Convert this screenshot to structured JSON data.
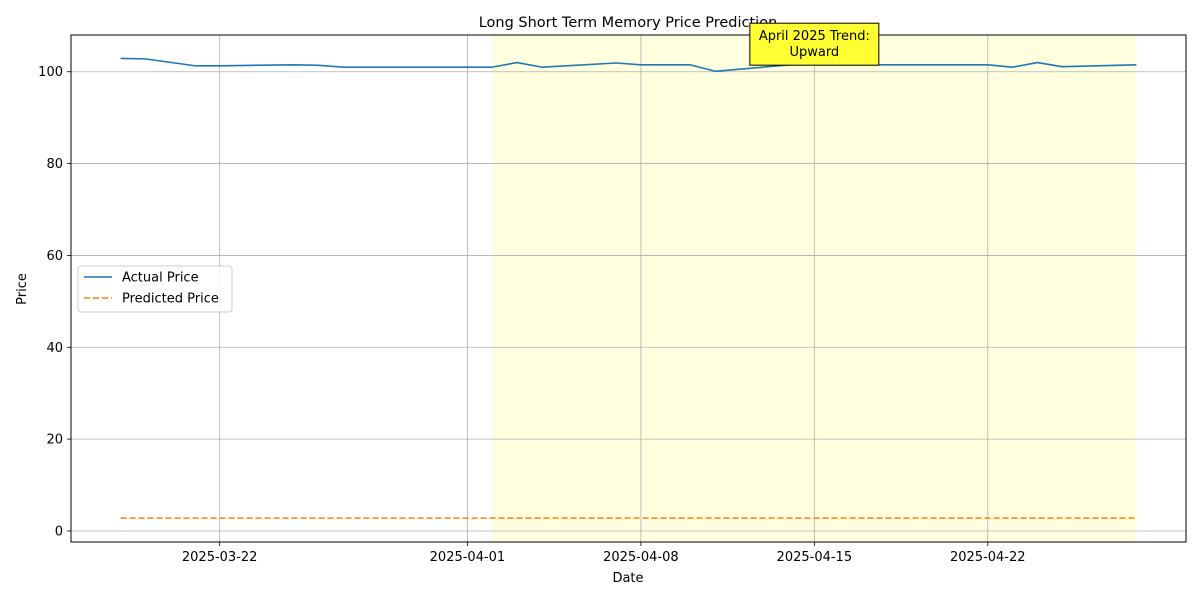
{
  "chart_data": {
    "type": "line",
    "title": "Long Short Term Memory Price Prediction",
    "xlabel": "Date",
    "ylabel": "Price",
    "xlim": [
      "2025-03-16",
      "2025-04-30"
    ],
    "ylim": [
      -2.4,
      108
    ],
    "grid": true,
    "legend_position": "center-left",
    "x_tick_labels": [
      "2025-03-22",
      "2025-04-01",
      "2025-04-08",
      "2025-04-15",
      "2025-04-22"
    ],
    "y_ticks": [
      0,
      20,
      40,
      60,
      80,
      100
    ],
    "highlight_span": {
      "start": "2025-04-02",
      "end": "2025-04-28",
      "color": "#ffffe0"
    },
    "annotation": {
      "lines": [
        "April 2025 Trend:",
        "Upward"
      ],
      "x": "2025-04-15",
      "y": 106,
      "box_color": "#ffff33"
    },
    "series": [
      {
        "name": "Actual Price",
        "color": "#1f77b4",
        "style": "solid",
        "x": [
          "2025-03-18",
          "2025-03-19",
          "2025-03-21",
          "2025-03-22",
          "2025-03-25",
          "2025-03-26",
          "2025-03-27",
          "2025-03-28",
          "2025-04-01",
          "2025-04-02",
          "2025-04-03",
          "2025-04-04",
          "2025-04-07",
          "2025-04-08",
          "2025-04-09",
          "2025-04-10",
          "2025-04-11",
          "2025-04-14",
          "2025-04-15",
          "2025-04-16",
          "2025-04-17",
          "2025-04-21",
          "2025-04-22",
          "2025-04-23",
          "2025-04-24",
          "2025-04-25",
          "2025-04-28"
        ],
        "y": [
          102.9,
          102.8,
          101.3,
          101.3,
          101.5,
          101.4,
          101.0,
          101.0,
          101.0,
          101.0,
          102.0,
          101.0,
          101.9,
          101.5,
          101.5,
          101.5,
          100.1,
          101.5,
          102.0,
          101.5,
          101.5,
          101.5,
          101.5,
          101.0,
          102.0,
          101.1,
          101.5
        ]
      },
      {
        "name": "Predicted Price",
        "color": "#ff7f0e",
        "style": "dashed",
        "x": [
          "2025-03-18",
          "2025-04-28"
        ],
        "y": [
          2.8,
          2.8
        ]
      }
    ]
  }
}
